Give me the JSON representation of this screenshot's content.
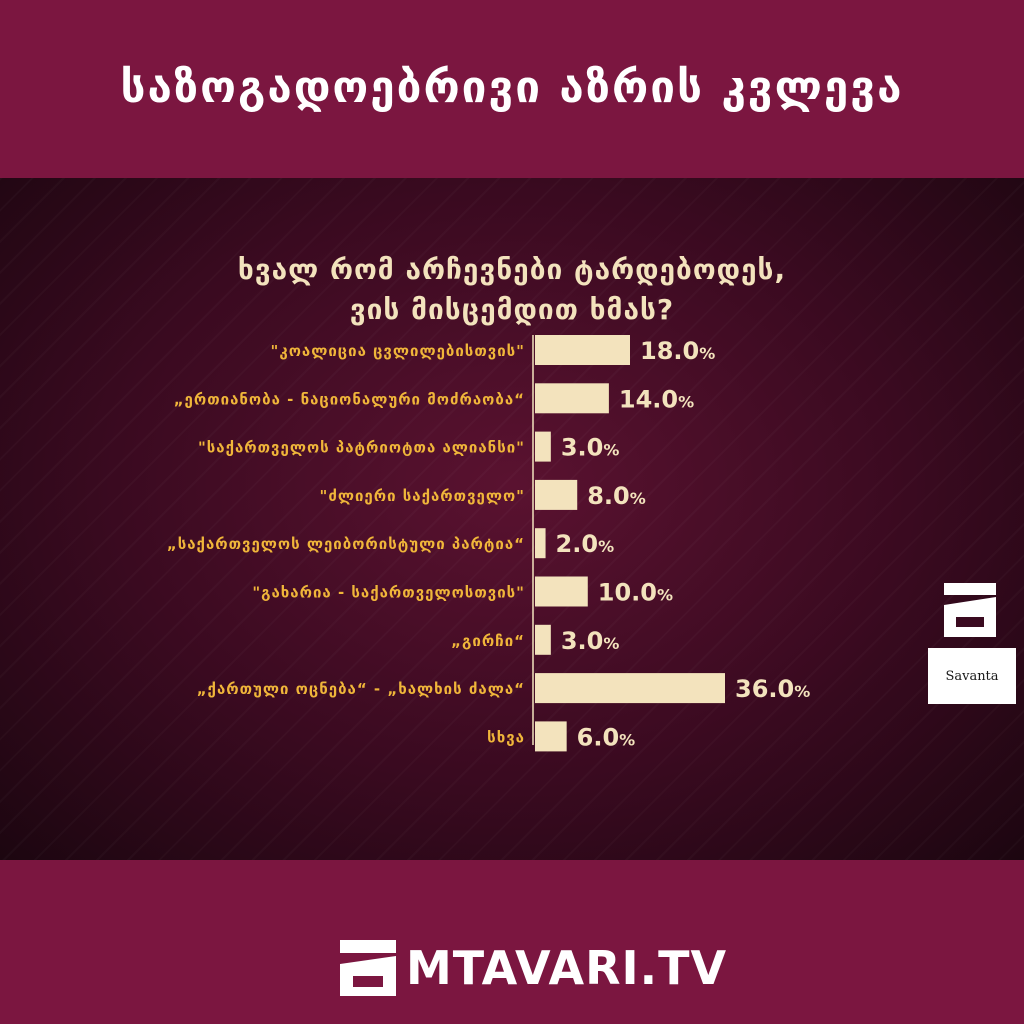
{
  "header": {
    "title": "საზოგადოებრივი აზრის კვლევა"
  },
  "chart_data": {
    "type": "bar",
    "orientation": "horizontal",
    "title_lines": [
      "ხვალ რომ არჩევნები ტარდებოდეს,",
      "ვის მისცემდით ხმას?"
    ],
    "categories": [
      "\"კოალიცია ცვლილებისთვის\"",
      "„ერთიანობა - ნაციონალური მოძრაობა“",
      "\"საქართველოს პატრიოტთა ალიანსი\"",
      "\"ძლიერი საქართველო\"",
      "„საქართველოს ლეიბორისტული პარტია“",
      "\"გახარია - საქართველოსთვის\"",
      "„გირჩი“",
      "„ქართული ოცნება“ - „ხალხის ძალა“",
      "სხვა"
    ],
    "values": [
      18.0,
      14.0,
      3.0,
      8.0,
      2.0,
      10.0,
      3.0,
      36.0,
      6.0
    ],
    "value_labels": [
      "18.0",
      "14.0",
      "3.0",
      "8.0",
      "2.0",
      "10.0",
      "3.0",
      "36.0",
      "6.0"
    ],
    "unit": "%",
    "xlim": [
      0,
      36
    ],
    "grid": false,
    "bar_color": "#f3e3bd",
    "label_color": "#f0b63a"
  },
  "logos": {
    "savanta": "Savanta",
    "brand": "MTAVARI.TV",
    "side_icon": "mtavari-logo-icon"
  },
  "colors": {
    "band": "#7b1640",
    "text_light": "#f3e3bd",
    "text_accent": "#f0b63a"
  }
}
